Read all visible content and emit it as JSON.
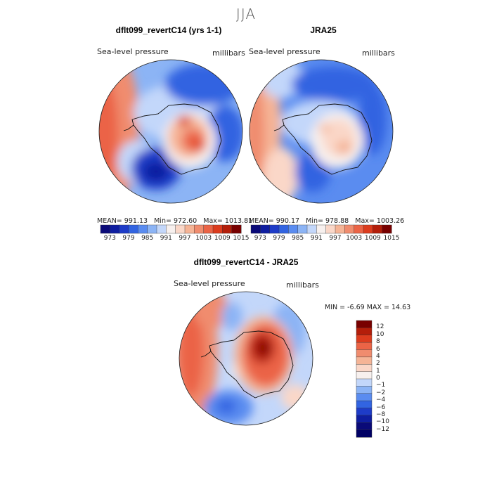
{
  "figure": {
    "title": "JJA"
  },
  "panels": {
    "model": {
      "title": "dflt099_revertC14 (yrs 1-1)",
      "variable": "Sea-level pressure",
      "units": "millibars",
      "mean_label": "MEAN=",
      "mean": "991.13",
      "min_label": "Min=",
      "min": "972.60",
      "max_label": "Max=",
      "max": "1013.81"
    },
    "obs": {
      "title": "JRA25",
      "variable": "Sea-level pressure",
      "units": "millibars",
      "mean_label": "MEAN=",
      "mean": "990.17",
      "min_label": "Min=",
      "min": "978.88",
      "max_label": "Max=",
      "max": "1003.26"
    },
    "diff": {
      "title": "dflt099_revertC14 - JRA25",
      "variable": "Sea-level pressure",
      "units": "millibars",
      "min_label": "MIN =",
      "min": "-6.69",
      "max_label": "MAX =",
      "max": "14.63"
    }
  },
  "colorbar_top": {
    "tick_labels": [
      "973",
      "979",
      "985",
      "991",
      "997",
      "1003",
      "1009",
      "1015"
    ],
    "colors": [
      "#0a0a78",
      "#0f1ea0",
      "#1e3cc8",
      "#3264e1",
      "#5a8cf0",
      "#8cb4f5",
      "#c3d7fa",
      "#f7f0ee",
      "#fad7c8",
      "#f5b496",
      "#f08c6e",
      "#eb6446",
      "#dc3c1e",
      "#b41e0a",
      "#780000"
    ]
  },
  "colorbar_diff": {
    "tick_labels": [
      "12",
      "10",
      "8",
      "6",
      "4",
      "2",
      "1",
      "0",
      "−1",
      "−2",
      "−4",
      "−6",
      "−8",
      "−10",
      "−12"
    ],
    "colors": [
      "#780000",
      "#b41e0a",
      "#dc3c1e",
      "#eb6446",
      "#f08c6e",
      "#f5b496",
      "#fad7c8",
      "#f7f0ee",
      "#c3d7fa",
      "#8cb4f5",
      "#5a8cf0",
      "#3264e1",
      "#1e3cc8",
      "#0f1ea0",
      "#0a0a78",
      "#000064"
    ]
  }
}
